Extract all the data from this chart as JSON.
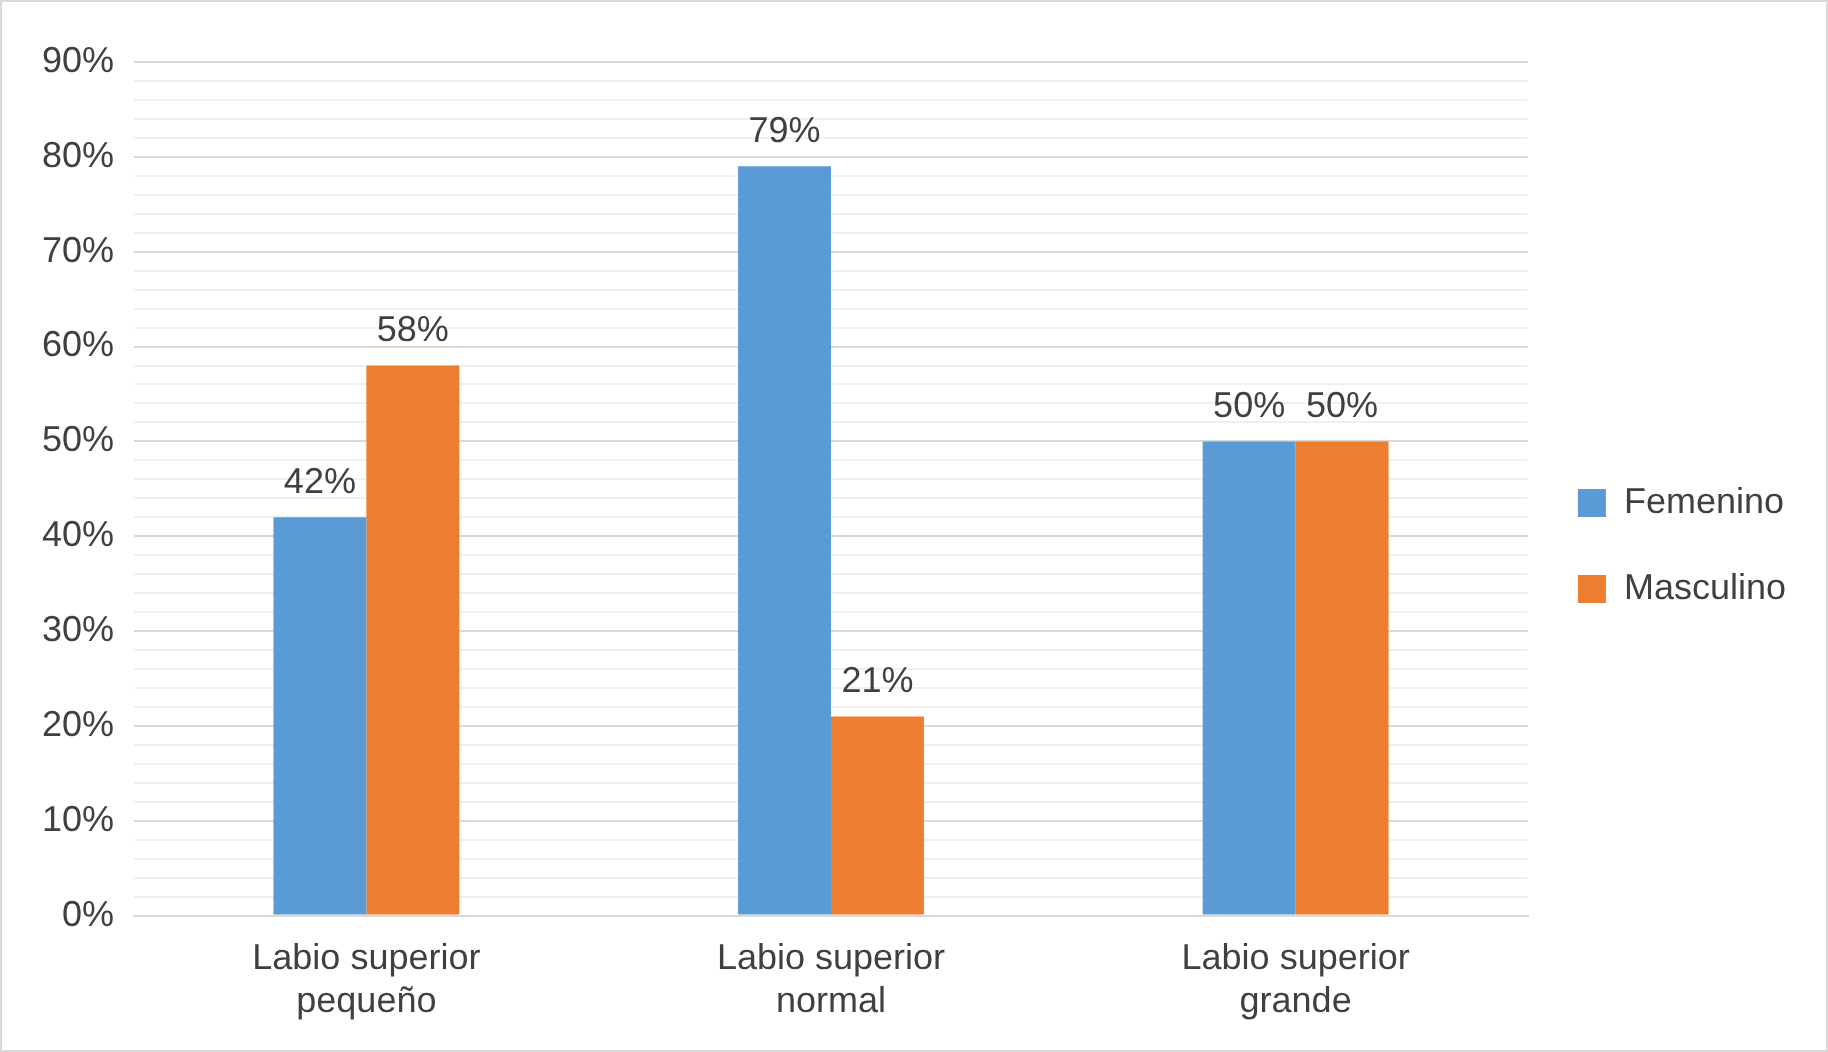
{
  "chart_data": {
    "type": "bar",
    "categories": [
      "Labio superior pequeño",
      "Labio superior normal",
      "Labio superior grande"
    ],
    "series": [
      {
        "name": "Femenino",
        "color": "#5b9bd5",
        "values": [
          42,
          79,
          50
        ],
        "value_labels": [
          "42%",
          "79%",
          "50%"
        ]
      },
      {
        "name": "Masculino",
        "color": "#ed7d31",
        "values": [
          58,
          21,
          50
        ],
        "value_labels": [
          "58%",
          "21%",
          "50%"
        ]
      }
    ],
    "ylim": [
      0,
      90
    ],
    "yticks": [
      {
        "value": 0,
        "label": "0%"
      },
      {
        "value": 2,
        "label": null
      },
      {
        "value": 4,
        "label": null
      },
      {
        "value": 6,
        "label": null
      },
      {
        "value": 8,
        "label": null
      },
      {
        "value": 10,
        "label": "10%"
      },
      {
        "value": 12,
        "label": null
      },
      {
        "value": 14,
        "label": null
      },
      {
        "value": 16,
        "label": null
      },
      {
        "value": 18,
        "label": null
      },
      {
        "value": 20,
        "label": "20%"
      },
      {
        "value": 22,
        "label": null
      },
      {
        "value": 24,
        "label": null
      },
      {
        "value": 26,
        "label": null
      },
      {
        "value": 28,
        "label": null
      },
      {
        "value": 30,
        "label": "30%"
      },
      {
        "value": 32,
        "label": null
      },
      {
        "value": 34,
        "label": null
      },
      {
        "value": 36,
        "label": null
      },
      {
        "value": 38,
        "label": null
      },
      {
        "value": 40,
        "label": "40%"
      },
      {
        "value": 42,
        "label": null
      },
      {
        "value": 44,
        "label": null
      },
      {
        "value": 46,
        "label": null
      },
      {
        "value": 48,
        "label": null
      },
      {
        "value": 50,
        "label": "50%"
      },
      {
        "value": 52,
        "label": null
      },
      {
        "value": 54,
        "label": null
      },
      {
        "value": 56,
        "label": null
      },
      {
        "value": 58,
        "label": null
      },
      {
        "value": 60,
        "label": "60%"
      },
      {
        "value": 62,
        "label": null
      },
      {
        "value": 64,
        "label": null
      },
      {
        "value": 66,
        "label": null
      },
      {
        "value": 68,
        "label": null
      },
      {
        "value": 70,
        "label": "70%"
      },
      {
        "value": 72,
        "label": null
      },
      {
        "value": 74,
        "label": null
      },
      {
        "value": 76,
        "label": null
      },
      {
        "value": 78,
        "label": null
      },
      {
        "value": 80,
        "label": "80%"
      },
      {
        "value": 82,
        "label": null
      },
      {
        "value": 84,
        "label": null
      },
      {
        "value": 86,
        "label": null
      },
      {
        "value": 88,
        "label": null
      },
      {
        "value": 90,
        "label": "90%"
      }
    ],
    "grid": "y",
    "legend": "right"
  }
}
